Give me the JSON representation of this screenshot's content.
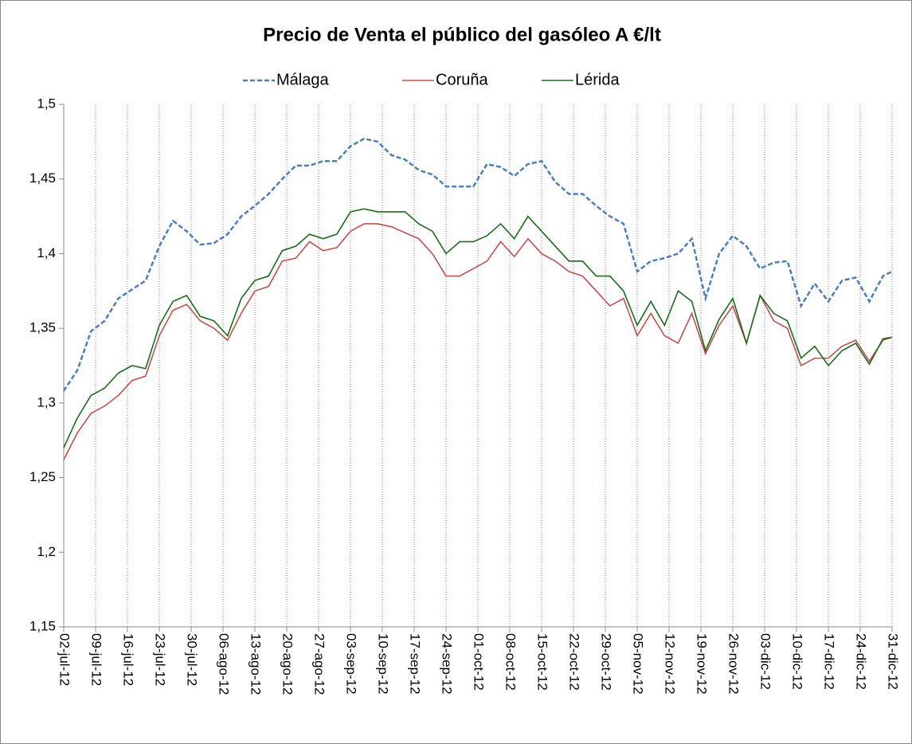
{
  "chart_data": {
    "type": "line",
    "title": "Precio de Venta el público del gasóleo A  €/lt",
    "legend": "top",
    "grid": "x",
    "x": [
      0,
      3,
      6,
      9,
      12,
      15,
      18,
      21,
      24,
      27,
      30,
      33,
      36,
      39,
      42,
      45,
      48,
      51,
      54,
      57,
      60,
      63,
      66,
      69,
      72,
      75,
      78,
      81,
      84,
      87,
      90,
      93,
      96,
      99,
      102,
      105,
      108,
      111,
      114,
      117,
      120,
      123,
      126,
      129,
      132,
      135,
      138,
      141,
      144,
      147,
      150,
      153,
      156,
      159,
      162,
      165,
      168,
      171,
      174,
      177,
      180,
      182
    ],
    "xlim": [
      0,
      182
    ],
    "xticks": [
      {
        "value": 0,
        "label": "02-jul-12"
      },
      {
        "value": 7,
        "label": "09-jul-12"
      },
      {
        "value": 14,
        "label": "16-jul-12"
      },
      {
        "value": 21,
        "label": "23-jul-12"
      },
      {
        "value": 28,
        "label": "30-jul-12"
      },
      {
        "value": 35,
        "label": "06-ago-12"
      },
      {
        "value": 42,
        "label": "13-ago-12"
      },
      {
        "value": 49,
        "label": "20-ago-12"
      },
      {
        "value": 56,
        "label": "27-ago-12"
      },
      {
        "value": 63,
        "label": "03-sep-12"
      },
      {
        "value": 70,
        "label": "10-sep-12"
      },
      {
        "value": 77,
        "label": "17-sep-12"
      },
      {
        "value": 84,
        "label": "24-sep-12"
      },
      {
        "value": 91,
        "label": "01-oct-12"
      },
      {
        "value": 98,
        "label": "08-oct-12"
      },
      {
        "value": 105,
        "label": "15-oct-12"
      },
      {
        "value": 112,
        "label": "22-oct-12"
      },
      {
        "value": 119,
        "label": "29-oct-12"
      },
      {
        "value": 126,
        "label": "05-nov-12"
      },
      {
        "value": 133,
        "label": "12-nov-12"
      },
      {
        "value": 140,
        "label": "19-nov-12"
      },
      {
        "value": 147,
        "label": "26-nov-12"
      },
      {
        "value": 154,
        "label": "03-dic-12"
      },
      {
        "value": 161,
        "label": "10-dic-12"
      },
      {
        "value": 168,
        "label": "17-dic-12"
      },
      {
        "value": 175,
        "label": "24-dic-12"
      },
      {
        "value": 182,
        "label": "31-dic-12"
      }
    ],
    "ylim": [
      1.15,
      1.5
    ],
    "yticks": [
      {
        "value": 1.15,
        "label": "1,15"
      },
      {
        "value": 1.2,
        "label": "1,2"
      },
      {
        "value": 1.25,
        "label": "1,25"
      },
      {
        "value": 1.3,
        "label": "1,3"
      },
      {
        "value": 1.35,
        "label": "1,35"
      },
      {
        "value": 1.4,
        "label": "1,4"
      },
      {
        "value": 1.45,
        "label": "1,45"
      },
      {
        "value": 1.5,
        "label": "1,5"
      }
    ],
    "series": [
      {
        "name": "Málaga",
        "color": "#4a7ebb",
        "dashed": true,
        "values": [
          1.308,
          1.322,
          1.348,
          1.355,
          1.37,
          1.376,
          1.382,
          1.405,
          1.422,
          1.415,
          1.406,
          1.407,
          1.413,
          1.425,
          1.432,
          1.44,
          1.45,
          1.459,
          1.459,
          1.462,
          1.462,
          1.472,
          1.477,
          1.475,
          1.466,
          1.463,
          1.456,
          1.453,
          1.445,
          1.445,
          1.445,
          1.46,
          1.458,
          1.452,
          1.46,
          1.462,
          1.448,
          1.44,
          1.44,
          1.432,
          1.425,
          1.42,
          1.388,
          1.395,
          1.397,
          1.4,
          1.41,
          1.37,
          1.4,
          1.412,
          1.405,
          1.39,
          1.394,
          1.395,
          1.365,
          1.38,
          1.368,
          1.382,
          1.384,
          1.368,
          1.385,
          1.388
        ]
      },
      {
        "name": "Coruña",
        "color": "#c0504d",
        "dashed": false,
        "values": [
          1.262,
          1.28,
          1.293,
          1.298,
          1.305,
          1.315,
          1.318,
          1.345,
          1.362,
          1.366,
          1.355,
          1.35,
          1.342,
          1.36,
          1.375,
          1.378,
          1.395,
          1.397,
          1.408,
          1.402,
          1.404,
          1.415,
          1.42,
          1.42,
          1.418,
          1.414,
          1.41,
          1.4,
          1.385,
          1.385,
          1.39,
          1.395,
          1.408,
          1.398,
          1.41,
          1.4,
          1.395,
          1.388,
          1.385,
          1.375,
          1.365,
          1.37,
          1.345,
          1.36,
          1.345,
          1.34,
          1.36,
          1.333,
          1.352,
          1.365,
          1.34,
          1.372,
          1.355,
          1.35,
          1.325,
          1.33,
          1.33,
          1.338,
          1.342,
          1.328,
          1.342,
          1.344
        ]
      },
      {
        "name": "Lérida",
        "color": "#1a6b1a",
        "dashed": false,
        "values": [
          1.27,
          1.29,
          1.305,
          1.31,
          1.32,
          1.325,
          1.323,
          1.352,
          1.368,
          1.372,
          1.358,
          1.355,
          1.345,
          1.37,
          1.382,
          1.385,
          1.402,
          1.405,
          1.413,
          1.41,
          1.413,
          1.428,
          1.43,
          1.428,
          1.428,
          1.428,
          1.42,
          1.415,
          1.4,
          1.408,
          1.408,
          1.412,
          1.42,
          1.41,
          1.425,
          1.415,
          1.405,
          1.395,
          1.395,
          1.385,
          1.385,
          1.375,
          1.352,
          1.368,
          1.352,
          1.375,
          1.368,
          1.335,
          1.356,
          1.37,
          1.34,
          1.372,
          1.36,
          1.355,
          1.33,
          1.338,
          1.325,
          1.335,
          1.34,
          1.326,
          1.343,
          1.344
        ]
      }
    ]
  }
}
